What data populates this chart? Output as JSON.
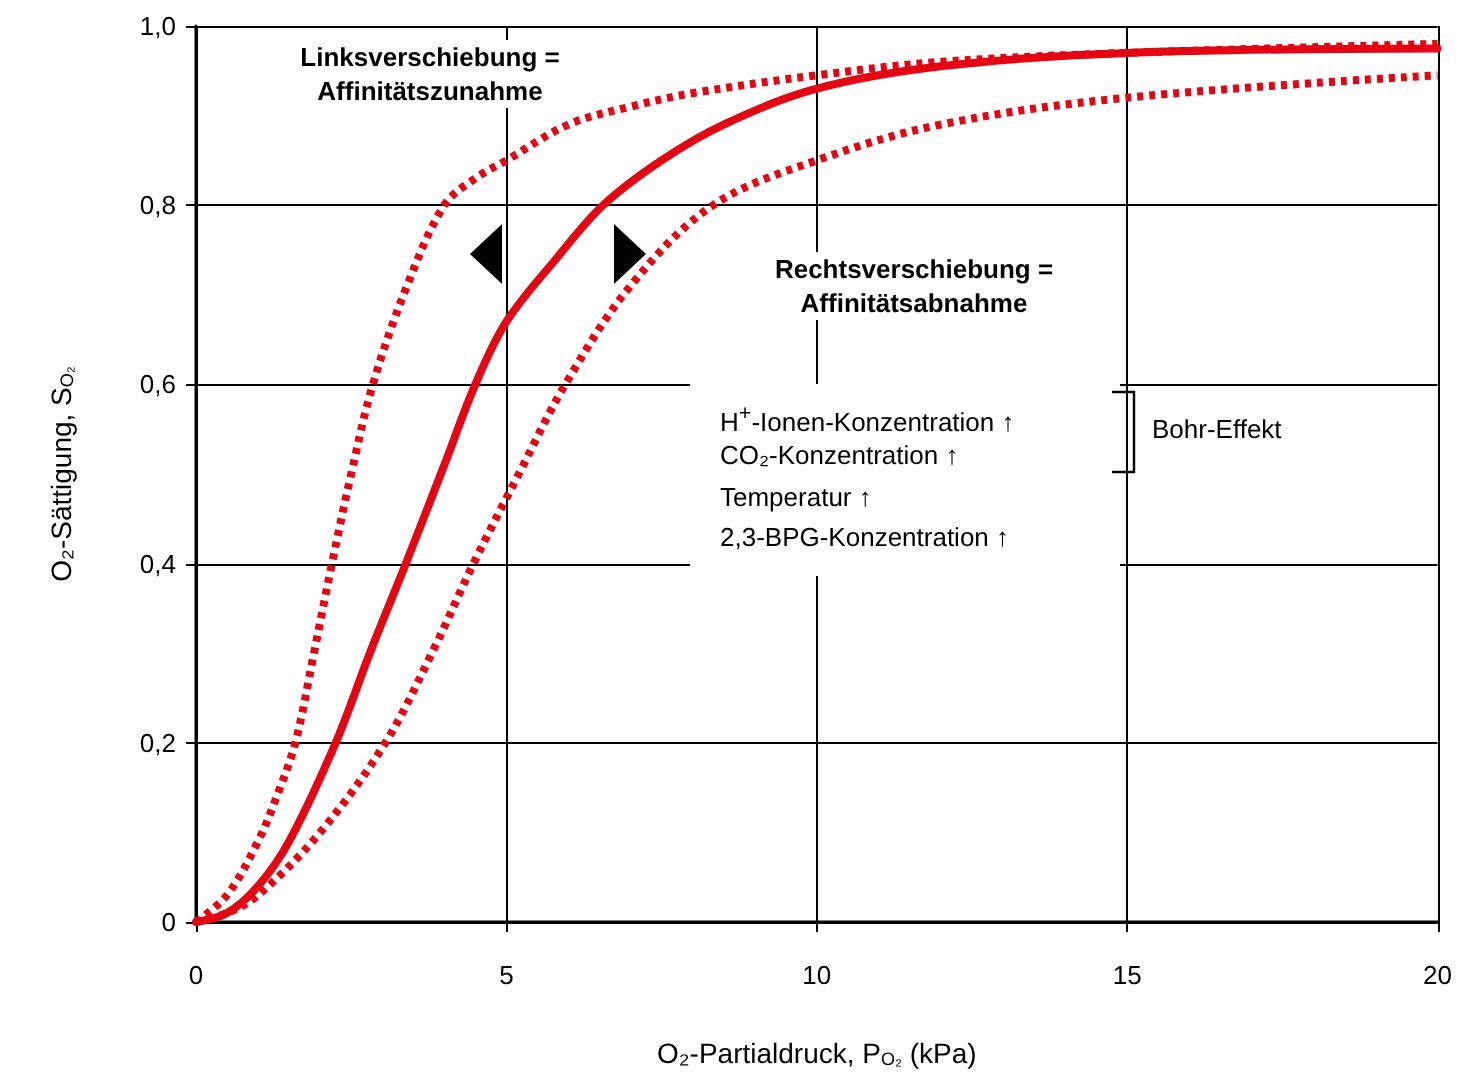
{
  "chart_data": {
    "type": "line",
    "xlabel": "O₂-Partialdruck, P$_{O₂}$ (kPa)",
    "ylabel": "O₂-Sättigung, S$_{O₂}$",
    "xlim": [
      0,
      20
    ],
    "xticks": [
      0,
      5,
      10,
      15,
      20
    ],
    "ylim": [
      0,
      1
    ],
    "yticks": [
      {
        "value": 0,
        "label": "0"
      },
      {
        "value": 0.2,
        "label": "0,2"
      },
      {
        "value": 0.4,
        "label": "0,4"
      },
      {
        "value": 0.6,
        "label": "0,6"
      },
      {
        "value": 0.8,
        "label": "0,8"
      },
      {
        "value": 1,
        "label": "1,0"
      }
    ],
    "grid": true,
    "marker": "none",
    "series": [
      {
        "color": "#e30613",
        "line_style": "dotted",
        "x": [
          0,
          0.5,
          1,
          1.3,
          1.6,
          1.9,
          2.19,
          2.5,
          2.85,
          3.4,
          4.0,
          4.5,
          5,
          6,
          7,
          8,
          10,
          12,
          15,
          20
        ],
        "values": [
          0,
          0.03,
          0.09,
          0.14,
          0.2,
          0.3,
          0.4,
          0.5,
          0.6,
          0.71,
          0.8,
          0.83,
          0.85,
          0.89,
          0.91,
          0.925,
          0.945,
          0.96,
          0.97,
          0.98
        ]
      },
      {
        "color": "#e30613",
        "line_style": "solid",
        "x": [
          0,
          0.5,
          1,
          1.5,
          2.25,
          2.8,
          3.38,
          4.0,
          4.5,
          5,
          5.8,
          6.56,
          7.5,
          8.5,
          10,
          12,
          15,
          20
        ],
        "values": [
          0,
          0.01,
          0.04,
          0.09,
          0.2,
          0.3,
          0.4,
          0.51,
          0.6,
          0.67,
          0.74,
          0.8,
          0.85,
          0.89,
          0.93,
          0.955,
          0.97,
          0.975
        ]
      },
      {
        "color": "#e30613",
        "line_style": "dotted",
        "x": [
          0,
          0.5,
          1,
          2,
          3.05,
          3.8,
          4.47,
          5.2,
          5.95,
          7,
          8.33,
          10,
          12,
          15,
          20
        ],
        "values": [
          0,
          0.01,
          0.03,
          0.1,
          0.2,
          0.3,
          0.4,
          0.5,
          0.6,
          0.71,
          0.8,
          0.85,
          0.89,
          0.92,
          0.945
        ]
      }
    ],
    "annotations": [
      "Linksverschiebung = Affinitätszunahme",
      "Rechtsverschiebung = Affinitätsabnahme",
      "H$^{+}$-Ionen-Konzentration ↑",
      "CO₂-Konzentration ↑",
      "Temperatur ↑",
      "2,3-BPG-Konzentration ↑",
      "Bohr-Effekt"
    ]
  }
}
